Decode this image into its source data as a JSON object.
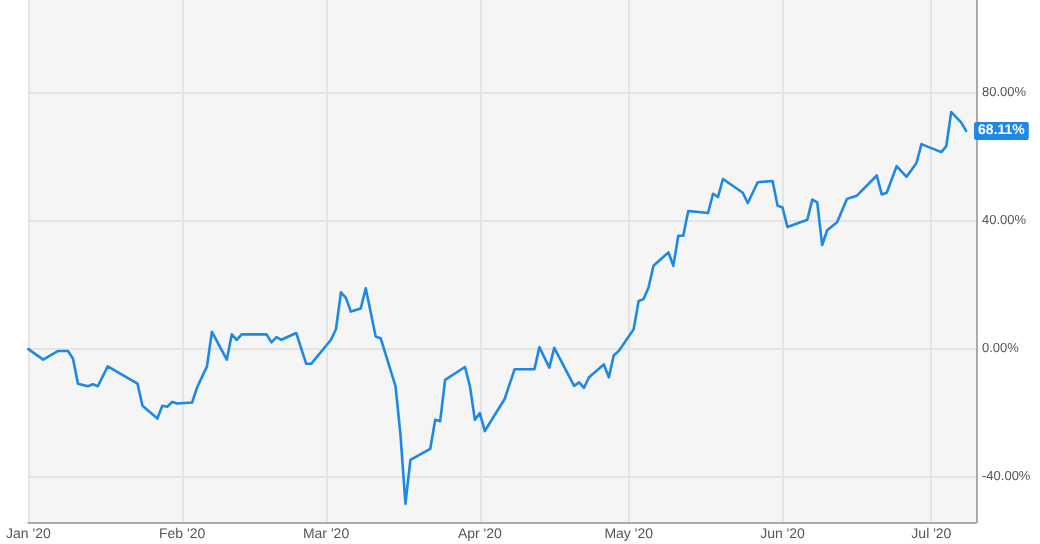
{
  "chart_data": {
    "type": "line",
    "x": [
      "2020-01-01",
      "2020-01-04",
      "2020-01-07",
      "2020-01-09",
      "2020-01-10",
      "2020-01-11",
      "2020-01-13",
      "2020-01-14",
      "2020-01-15",
      "2020-01-17",
      "2020-01-23",
      "2020-01-24",
      "2020-01-27",
      "2020-01-28",
      "2020-01-29",
      "2020-01-30",
      "2020-01-31",
      "2020-02-03",
      "2020-02-04",
      "2020-02-06",
      "2020-02-07",
      "2020-02-10",
      "2020-02-11",
      "2020-02-12",
      "2020-02-13",
      "2020-02-18",
      "2020-02-19",
      "2020-02-20",
      "2020-02-21",
      "2020-02-24",
      "2020-02-26",
      "2020-02-27",
      "2020-03-02",
      "2020-03-03",
      "2020-03-04",
      "2020-03-05",
      "2020-03-06",
      "2020-03-08",
      "2020-03-09",
      "2020-03-11",
      "2020-03-12",
      "2020-03-15",
      "2020-03-16",
      "2020-03-17",
      "2020-03-18",
      "2020-03-22",
      "2020-03-23",
      "2020-03-24",
      "2020-03-25",
      "2020-03-29",
      "2020-03-30",
      "2020-03-31",
      "2020-04-01",
      "2020-04-02",
      "2020-04-06",
      "2020-04-08",
      "2020-04-10",
      "2020-04-12",
      "2020-04-13",
      "2020-04-15",
      "2020-04-16",
      "2020-04-20",
      "2020-04-21",
      "2020-04-22",
      "2020-04-23",
      "2020-04-26",
      "2020-04-27",
      "2020-04-28",
      "2020-04-29",
      "2020-05-02",
      "2020-05-03",
      "2020-05-04",
      "2020-05-05",
      "2020-05-06",
      "2020-05-09",
      "2020-05-10",
      "2020-05-11",
      "2020-05-12",
      "2020-05-13",
      "2020-05-17",
      "2020-05-18",
      "2020-05-19",
      "2020-05-20",
      "2020-05-24",
      "2020-05-25",
      "2020-05-27",
      "2020-05-30",
      "2020-05-31",
      "2020-06-01",
      "2020-06-02",
      "2020-06-06",
      "2020-06-07",
      "2020-06-08",
      "2020-06-09",
      "2020-06-10",
      "2020-06-12",
      "2020-06-14",
      "2020-06-16",
      "2020-06-20",
      "2020-06-21",
      "2020-06-22",
      "2020-06-24",
      "2020-06-26",
      "2020-06-28",
      "2020-06-29",
      "2020-07-03",
      "2020-07-04",
      "2020-07-05",
      "2020-07-07",
      "2020-07-08"
    ],
    "series": [
      {
        "color": "#1e88e5",
        "values": [
          0,
          -3.3,
          -0.6,
          -0.6,
          -3,
          -10.8,
          -11.6,
          -11,
          -11.6,
          -5.4,
          -10.8,
          -17.7,
          -21.7,
          -17.7,
          -18,
          -16.5,
          -17,
          -16.7,
          -12,
          -5.4,
          5.4,
          -3.3,
          4.6,
          2.9,
          4.6,
          4.6,
          2.1,
          3.7,
          2.9,
          5,
          -4.6,
          -4.6,
          2.9,
          6.2,
          17.7,
          16,
          11.7,
          12.7,
          19,
          3.9,
          3.4,
          -11.6,
          -26.7,
          -48.3,
          -34.6,
          -31.2,
          -22.1,
          -22.5,
          -9.6,
          -5.6,
          -11.6,
          -22.1,
          -20,
          -25.6,
          -15.6,
          -6.3,
          -6.3,
          -6.3,
          0.6,
          -5.8,
          0.4,
          -11.5,
          -10.4,
          -12.1,
          -8.8,
          -4.8,
          -8.8,
          -1.9,
          -0.6,
          6.2,
          15,
          15.6,
          19.2,
          26,
          30.2,
          26,
          35.4,
          35.4,
          43.1,
          42.5,
          48.5,
          47.5,
          53.1,
          48.8,
          45.6,
          52.1,
          52.5,
          44.8,
          44.2,
          38.1,
          40.4,
          46.7,
          45.8,
          32.5,
          37.1,
          39.6,
          46.9,
          47.9,
          54.2,
          48.3,
          48.8,
          57.1,
          53.8,
          58.1,
          64,
          61.5,
          63.3,
          74,
          70.8,
          68.11
        ],
        "value_labels": [
          null,
          null,
          null,
          null,
          null,
          null,
          null,
          null,
          null,
          null,
          null,
          null,
          null,
          null,
          null,
          null,
          null,
          null,
          null,
          null,
          null,
          null,
          null,
          null,
          null,
          null,
          null,
          null,
          null,
          null,
          null,
          null,
          null,
          null,
          null,
          null,
          null,
          null,
          null,
          null,
          null,
          null,
          null,
          null,
          null,
          null,
          null,
          null,
          null,
          null,
          null,
          null,
          null,
          null,
          null,
          null,
          null,
          null,
          null,
          null,
          null,
          null,
          null,
          null,
          null,
          null,
          null,
          null,
          null,
          null,
          null,
          null,
          null,
          null,
          null,
          null,
          null,
          null,
          null,
          null,
          null,
          null,
          null,
          null,
          null,
          null,
          null,
          null,
          null,
          null,
          null,
          null,
          null,
          null,
          null,
          null,
          null,
          null,
          null,
          null,
          null,
          null,
          null,
          null,
          null,
          null,
          null,
          null,
          null,
          "68.11%"
        ]
      }
    ],
    "xlim": [
      "2020-01-01",
      "2020-07-10"
    ],
    "xticks": [
      {
        "value": "2020-01-01",
        "label": "Jan '20"
      },
      {
        "value": "2020-02-01",
        "label": "Feb '20"
      },
      {
        "value": "2020-03-01",
        "label": "Mar '20"
      },
      {
        "value": "2020-04-01",
        "label": "Apr '20"
      },
      {
        "value": "2020-05-01",
        "label": "May '20"
      },
      {
        "value": "2020-06-01",
        "label": "Jun '20"
      },
      {
        "value": "2020-07-01",
        "label": "Jul '20"
      }
    ],
    "ylim": [
      -54,
      109
    ],
    "yticks": [
      {
        "value": -40,
        "label": "-40.00%"
      },
      {
        "value": 0,
        "label": "0.00%"
      },
      {
        "value": 40,
        "label": "40.00%"
      },
      {
        "value": 80,
        "label": "80.00%"
      }
    ],
    "grid": true,
    "marker": "none",
    "line_style": "solid"
  }
}
